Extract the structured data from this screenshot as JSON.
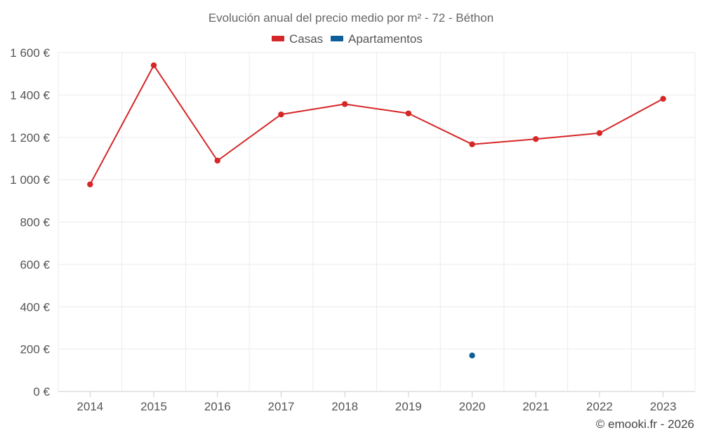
{
  "chart_data": {
    "type": "line",
    "title": "Evolución anual del precio medio por m² - 72 - Béthon",
    "categories": [
      "2014",
      "2015",
      "2016",
      "2017",
      "2018",
      "2019",
      "2020",
      "2021",
      "2022",
      "2023"
    ],
    "series": [
      {
        "name": "Casas",
        "color": "#d62728",
        "values": [
          978,
          1540,
          1090,
          1308,
          1357,
          1313,
          1167,
          1192,
          1220,
          1382
        ]
      },
      {
        "name": "Apartamentos",
        "color": "#0d5f99",
        "values": [
          null,
          null,
          null,
          null,
          null,
          null,
          170,
          null,
          null,
          null
        ]
      }
    ],
    "y_ticks": [
      "0 €",
      "200 €",
      "400 €",
      "600 €",
      "800 €",
      "1 000 €",
      "1 200 €",
      "1 400 €",
      "1 600 €"
    ],
    "ylim": [
      0,
      1600
    ],
    "grid": true,
    "legend_position": "top-center",
    "xlabel": "",
    "ylabel": ""
  },
  "credit": "© emooki.fr - 2026"
}
